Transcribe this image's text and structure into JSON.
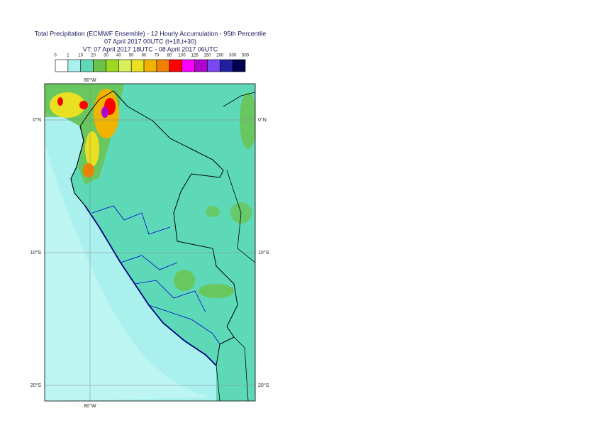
{
  "header": {
    "lines": [
      "Total Precipitation (ECMWF Ensemble) - 12 Hourly Accumulation - 95th Percentile",
      "07 April 2017 00UTC (t+18,t+30)",
      "VT: 07 April 2017 18UTC - 08 April 2017 06UTC"
    ]
  },
  "legend": {
    "labels": [
      0,
      1,
      10,
      20,
      30,
      40,
      50,
      60,
      70,
      80,
      100,
      125,
      150,
      200,
      300,
      500
    ],
    "colors": [
      "#ffffff",
      "#a9f0ee",
      "#5ed9b8",
      "#6cc24a",
      "#9ed820",
      "#d8f05a",
      "#e8e020",
      "#f0b400",
      "#f08000",
      "#ff0000",
      "#ff00ff",
      "#b000d0",
      "#7848f0",
      "#2020a0",
      "#000050"
    ]
  },
  "grid_labels": {
    "top": [
      "80°W"
    ],
    "bottom": [
      "80°W"
    ],
    "left": [
      "0°N",
      "10°S",
      "20°S"
    ],
    "right": [
      "0°N",
      "10°S",
      "20°S"
    ]
  }
}
